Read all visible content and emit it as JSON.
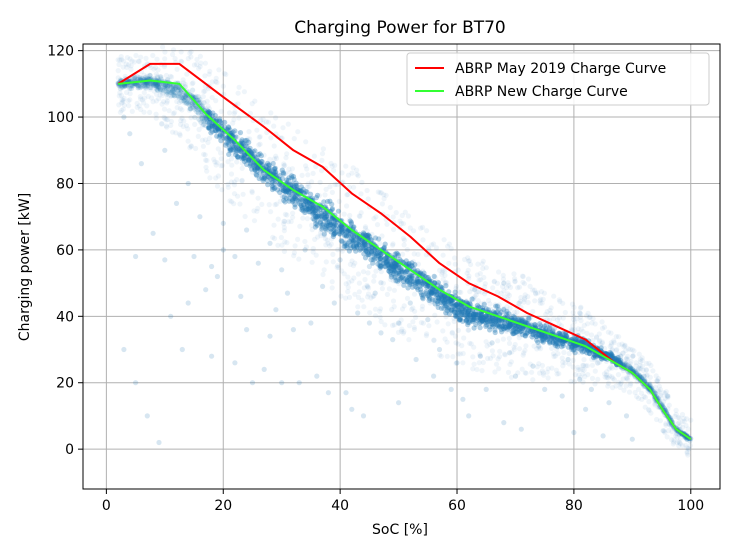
{
  "chart_data": {
    "type": "scatter",
    "title": "Charging Power for BT70",
    "xlabel": "SoC [%]",
    "ylabel": "Charging power [kW]",
    "xlim": [
      -4,
      105
    ],
    "ylim": [
      -12,
      122
    ],
    "xticks": [
      0,
      20,
      40,
      60,
      80,
      100
    ],
    "yticks": [
      0,
      20,
      40,
      60,
      80,
      100,
      120
    ],
    "grid": true,
    "legend_position": "top-right",
    "colors": {
      "scatter": "#1f77b4",
      "series_old": "#ff0000",
      "series_new": "#33ff33",
      "grid": "#b0b0b0"
    },
    "series": [
      {
        "name": "ABRP May 2019 Charge Curve",
        "color": "#ff0000",
        "x": [
          2,
          7.5,
          12.5,
          20,
          27,
          32,
          37,
          42,
          47,
          52,
          57,
          62,
          67,
          72,
          77,
          82,
          87,
          90,
          93,
          95.5,
          97.5,
          100
        ],
        "y": [
          110,
          116,
          116,
          106,
          97,
          90,
          85,
          77,
          71,
          64,
          56,
          50,
          46,
          41,
          37,
          33,
          26,
          23,
          18,
          11,
          6,
          3
        ]
      },
      {
        "name": "ABRP New Charge Curve",
        "color": "#33ff33",
        "x": [
          2,
          7.5,
          12.5,
          17,
          22,
          27,
          32,
          37,
          42,
          47,
          52,
          57,
          62,
          67,
          72,
          77,
          82,
          87,
          90,
          93,
          95.5,
          97.5,
          100
        ],
        "y": [
          110,
          111,
          110,
          101,
          93,
          84,
          78,
          73,
          66,
          60,
          54,
          48,
          43,
          40,
          37,
          34,
          31,
          26,
          23,
          18,
          11,
          6,
          3
        ]
      }
    ],
    "scatter_band": {
      "name": "measurements",
      "x": [
        2,
        7.5,
        12.5,
        17,
        22,
        27,
        32,
        37,
        42,
        47,
        52,
        57,
        62,
        67,
        72,
        77,
        82,
        87,
        90,
        93,
        95.5,
        97.5,
        100
      ],
      "y_low": [
        108,
        108,
        104,
        95,
        86,
        78,
        71,
        64,
        58,
        52,
        46,
        41,
        36,
        34,
        32,
        30,
        28,
        25,
        22,
        17,
        10,
        5,
        2
      ],
      "y_high": [
        112,
        113,
        112,
        106,
        98,
        90,
        83,
        77,
        71,
        64,
        58,
        52,
        46,
        44,
        41,
        37,
        34,
        29,
        25,
        20,
        13,
        7,
        4
      ]
    },
    "outliers": [
      [
        38,
        17
      ],
      [
        41,
        17
      ],
      [
        42,
        12
      ],
      [
        44,
        10
      ],
      [
        25,
        20
      ],
      [
        30,
        20
      ],
      [
        33,
        20
      ],
      [
        45,
        38
      ],
      [
        50,
        38
      ],
      [
        55,
        39
      ],
      [
        60,
        40
      ],
      [
        65,
        39
      ],
      [
        35,
        38
      ],
      [
        32,
        36
      ],
      [
        28,
        34
      ],
      [
        24,
        36
      ],
      [
        20,
        60
      ],
      [
        22,
        58
      ],
      [
        26,
        56
      ],
      [
        30,
        54
      ],
      [
        15,
        58
      ],
      [
        5,
        58
      ],
      [
        10,
        57
      ],
      [
        18,
        55
      ],
      [
        28,
        62
      ],
      [
        34,
        60
      ],
      [
        40,
        57
      ],
      [
        45,
        55
      ],
      [
        50,
        53
      ],
      [
        55,
        50
      ],
      [
        14,
        80
      ],
      [
        12,
        74
      ],
      [
        16,
        70
      ],
      [
        20,
        68
      ],
      [
        24,
        66
      ],
      [
        8,
        65
      ],
      [
        6,
        86
      ],
      [
        10,
        90
      ],
      [
        4,
        95
      ],
      [
        3,
        100
      ],
      [
        13,
        30
      ],
      [
        18,
        28
      ],
      [
        22,
        26
      ],
      [
        27,
        24
      ],
      [
        36,
        22
      ],
      [
        50,
        14
      ],
      [
        62,
        10
      ],
      [
        68,
        8
      ],
      [
        71,
        6
      ],
      [
        80,
        5
      ],
      [
        85,
        4
      ],
      [
        90,
        3
      ],
      [
        57,
        30
      ],
      [
        60,
        26
      ],
      [
        70,
        22
      ],
      [
        75,
        18
      ],
      [
        78,
        16
      ],
      [
        82,
        12
      ],
      [
        65,
        18
      ],
      [
        47,
        35
      ],
      [
        52,
        44
      ],
      [
        58,
        46
      ],
      [
        63,
        48
      ],
      [
        68,
        50
      ],
      [
        72,
        38
      ],
      [
        76,
        34
      ],
      [
        84,
        30
      ],
      [
        88,
        28
      ],
      [
        92,
        22
      ],
      [
        96,
        16
      ],
      [
        3,
        30
      ],
      [
        5,
        20
      ],
      [
        7,
        10
      ],
      [
        9,
        2
      ],
      [
        11,
        40
      ],
      [
        14,
        44
      ],
      [
        17,
        48
      ],
      [
        19,
        52
      ],
      [
        23,
        46
      ],
      [
        29,
        42
      ],
      [
        31,
        47
      ],
      [
        37,
        49
      ],
      [
        39,
        44
      ],
      [
        43,
        41
      ],
      [
        46,
        47
      ],
      [
        49,
        33
      ],
      [
        53,
        27
      ],
      [
        56,
        22
      ],
      [
        59,
        18
      ],
      [
        61,
        15
      ],
      [
        64,
        28
      ],
      [
        66,
        32
      ],
      [
        69,
        29
      ],
      [
        73,
        25
      ],
      [
        74,
        31
      ],
      [
        79,
        27
      ],
      [
        81,
        21
      ],
      [
        83,
        18
      ],
      [
        86,
        14
      ],
      [
        89,
        10
      ]
    ]
  }
}
